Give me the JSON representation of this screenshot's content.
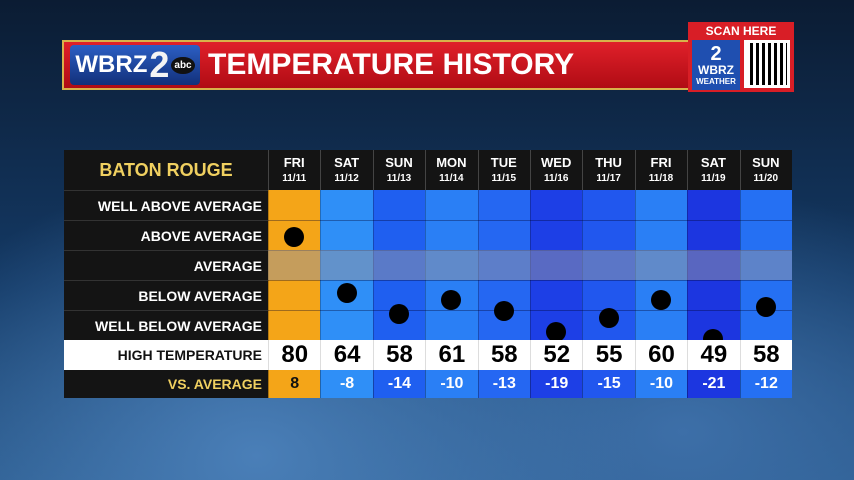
{
  "header": {
    "logo": "WBRZ",
    "logo_number": "2",
    "logo_network": "abc",
    "title": "TEMPERATURE HISTORY"
  },
  "qr": {
    "label": "SCAN HERE",
    "logo_number": "2",
    "logo": "WBRZ",
    "logo_sub": "WEATHER"
  },
  "table": {
    "location": "BATON ROUGE",
    "row_labels": [
      "WELL ABOVE AVERAGE",
      "ABOVE AVERAGE",
      "AVERAGE",
      "BELOW AVERAGE",
      "WELL BELOW AVERAGE"
    ],
    "high_label": "HIGH TEMPERATURE",
    "departure_label": "VS. AVERAGE",
    "days": [
      {
        "day": "FRI",
        "date": "11/11",
        "high": 80,
        "departure": 8,
        "color": "#f4a518"
      },
      {
        "day": "SAT",
        "date": "11/12",
        "high": 64,
        "departure": -8,
        "color": "#2f8ff7"
      },
      {
        "day": "SUN",
        "date": "11/13",
        "high": 58,
        "departure": -14,
        "color": "#1f5ff0"
      },
      {
        "day": "MON",
        "date": "11/14",
        "high": 61,
        "departure": -10,
        "color": "#2a7ff5"
      },
      {
        "day": "TUE",
        "date": "11/15",
        "high": 58,
        "departure": -13,
        "color": "#2567f2"
      },
      {
        "day": "WED",
        "date": "11/16",
        "high": 52,
        "departure": -19,
        "color": "#1d3fe6"
      },
      {
        "day": "THU",
        "date": "11/17",
        "high": 55,
        "departure": -15,
        "color": "#2157ee"
      },
      {
        "day": "FRI",
        "date": "11/18",
        "high": 60,
        "departure": -10,
        "color": "#2a7ff5"
      },
      {
        "day": "SAT",
        "date": "11/19",
        "high": 49,
        "departure": -21,
        "color": "#1c36e0"
      },
      {
        "day": "SUN",
        "date": "11/20",
        "high": 58,
        "departure": -12,
        "color": "#2570f3"
      }
    ]
  }
}
